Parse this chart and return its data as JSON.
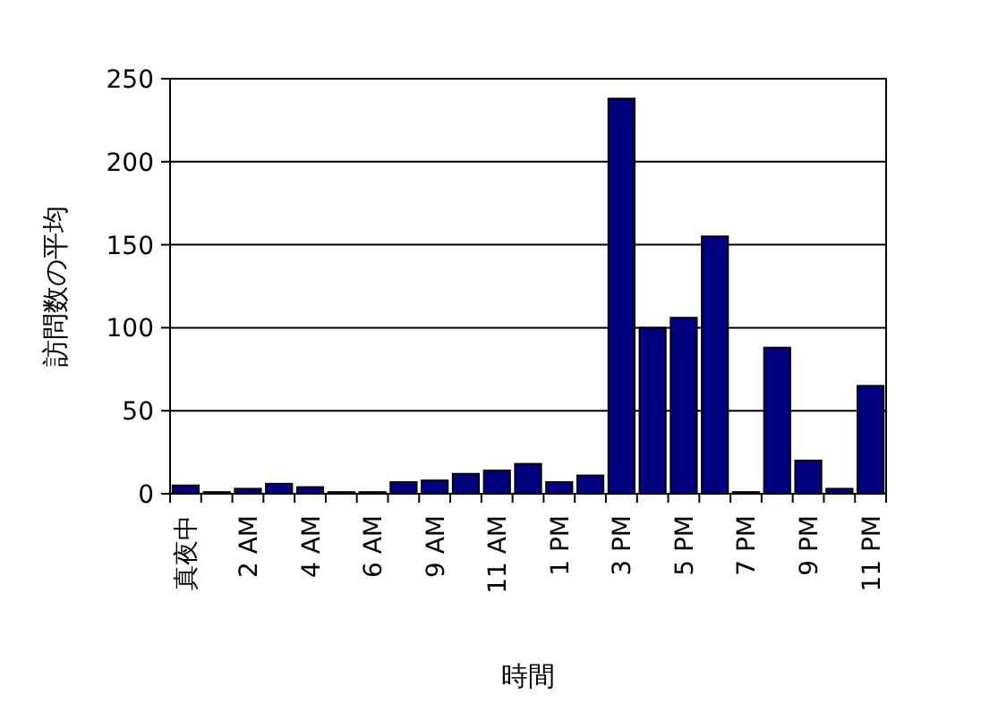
{
  "chart_data": {
    "type": "bar",
    "xlabel": "時間",
    "ylabel": "訪問数の平均",
    "categories": [
      "真夜中",
      null,
      "2 AM",
      null,
      "4 AM",
      null,
      "6 AM",
      null,
      "9 AM",
      null,
      "11 AM",
      null,
      "1 PM",
      null,
      "3 PM",
      null,
      "5 PM",
      null,
      "7 PM",
      null,
      "9 PM",
      null,
      "11 PM"
    ],
    "values": [
      5,
      1,
      3,
      6,
      4,
      1,
      1,
      7,
      8,
      12,
      14,
      18,
      7,
      11,
      238,
      100,
      106,
      155,
      1,
      88,
      20,
      3,
      65
    ],
    "color": "#000080",
    "ylim": [
      0,
      250
    ],
    "yticks": [
      0,
      50,
      100,
      150,
      200,
      250
    ],
    "grid": "y"
  }
}
